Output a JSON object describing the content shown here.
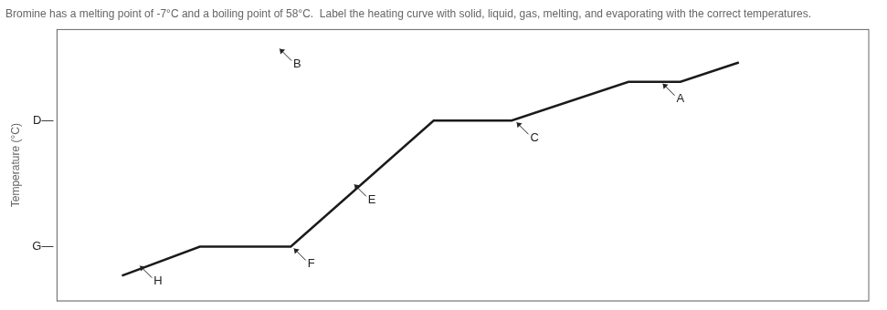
{
  "chart_data": {
    "type": "line",
    "title": "Bromine has a melting point of -7°C and a boiling point of 58°C.  Label the heating curve with solid, liquid, gas, melting, and evaporating with the correct temperatures.",
    "ylabel": "Temperature (°C)",
    "x": [
      1.0,
      2.2,
      3.6,
      5.8,
      7.0,
      8.8,
      9.6,
      10.5
    ],
    "values": [
      -22,
      -7,
      -7,
      58,
      58,
      78,
      78,
      88
    ],
    "color": "#1a1a1a",
    "xlim": [
      0,
      12.5
    ],
    "ylim": [
      -35,
      105
    ],
    "xticks": [],
    "yticks": [],
    "tick_labels": false,
    "grid": false,
    "annotations": [
      {
        "text": "G—",
        "x": 0,
        "y": -7
      },
      {
        "text": "D—",
        "x": 0,
        "y": 58
      },
      {
        "text": "B",
        "x": 3.4,
        "y": 96
      },
      {
        "text": "H",
        "x": 1.25,
        "y": -16
      },
      {
        "text": "F",
        "x": 3.62,
        "y": -7
      },
      {
        "text": "E",
        "x": 4.55,
        "y": 26
      },
      {
        "text": "C",
        "x": 7.05,
        "y": 58
      },
      {
        "text": "A",
        "x": 9.3,
        "y": 78
      }
    ]
  }
}
